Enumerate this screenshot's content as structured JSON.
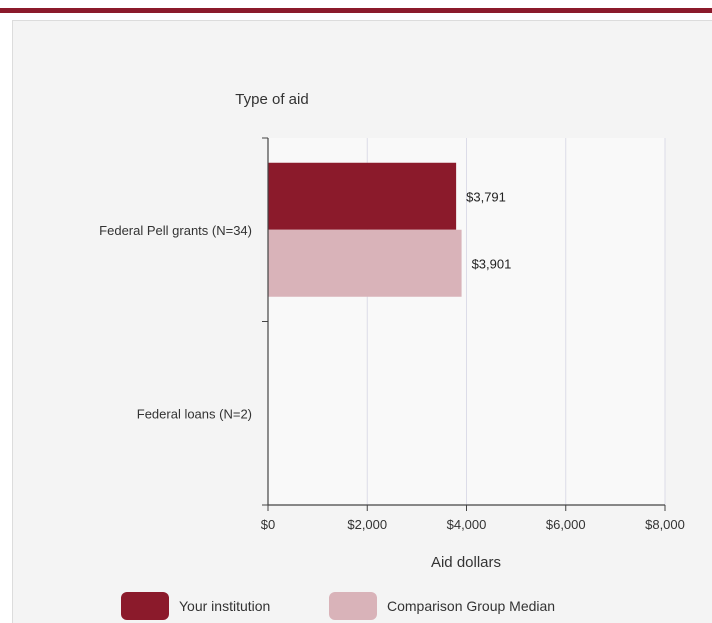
{
  "colors": {
    "accent": "#8b1a2b",
    "series_primary": "#8b1a2b",
    "series_secondary": "#d9b3b9",
    "grid": "#dcdce8",
    "axis": "#444444",
    "plot_bg": "#f9f9f9"
  },
  "chart_data": {
    "type": "bar",
    "orientation": "horizontal",
    "ylabel": "Type of aid",
    "xlabel": "Aid dollars",
    "categories": [
      "Federal Pell grants (N=34)",
      "Federal loans (N=2)"
    ],
    "series": [
      {
        "name": "Your institution",
        "values": [
          3791,
          null
        ],
        "value_labels": [
          "$3,791",
          ""
        ]
      },
      {
        "name": "Comparison Group Median",
        "values": [
          3901,
          null
        ],
        "value_labels": [
          "$3,901",
          ""
        ]
      }
    ],
    "xlim": [
      0,
      8000
    ],
    "x_ticks": [
      0,
      2000,
      4000,
      6000,
      8000
    ],
    "x_tick_labels": [
      "$0",
      "$2,000",
      "$4,000",
      "$6,000",
      "$8,000"
    ],
    "grid": true,
    "legend": "bottom"
  }
}
